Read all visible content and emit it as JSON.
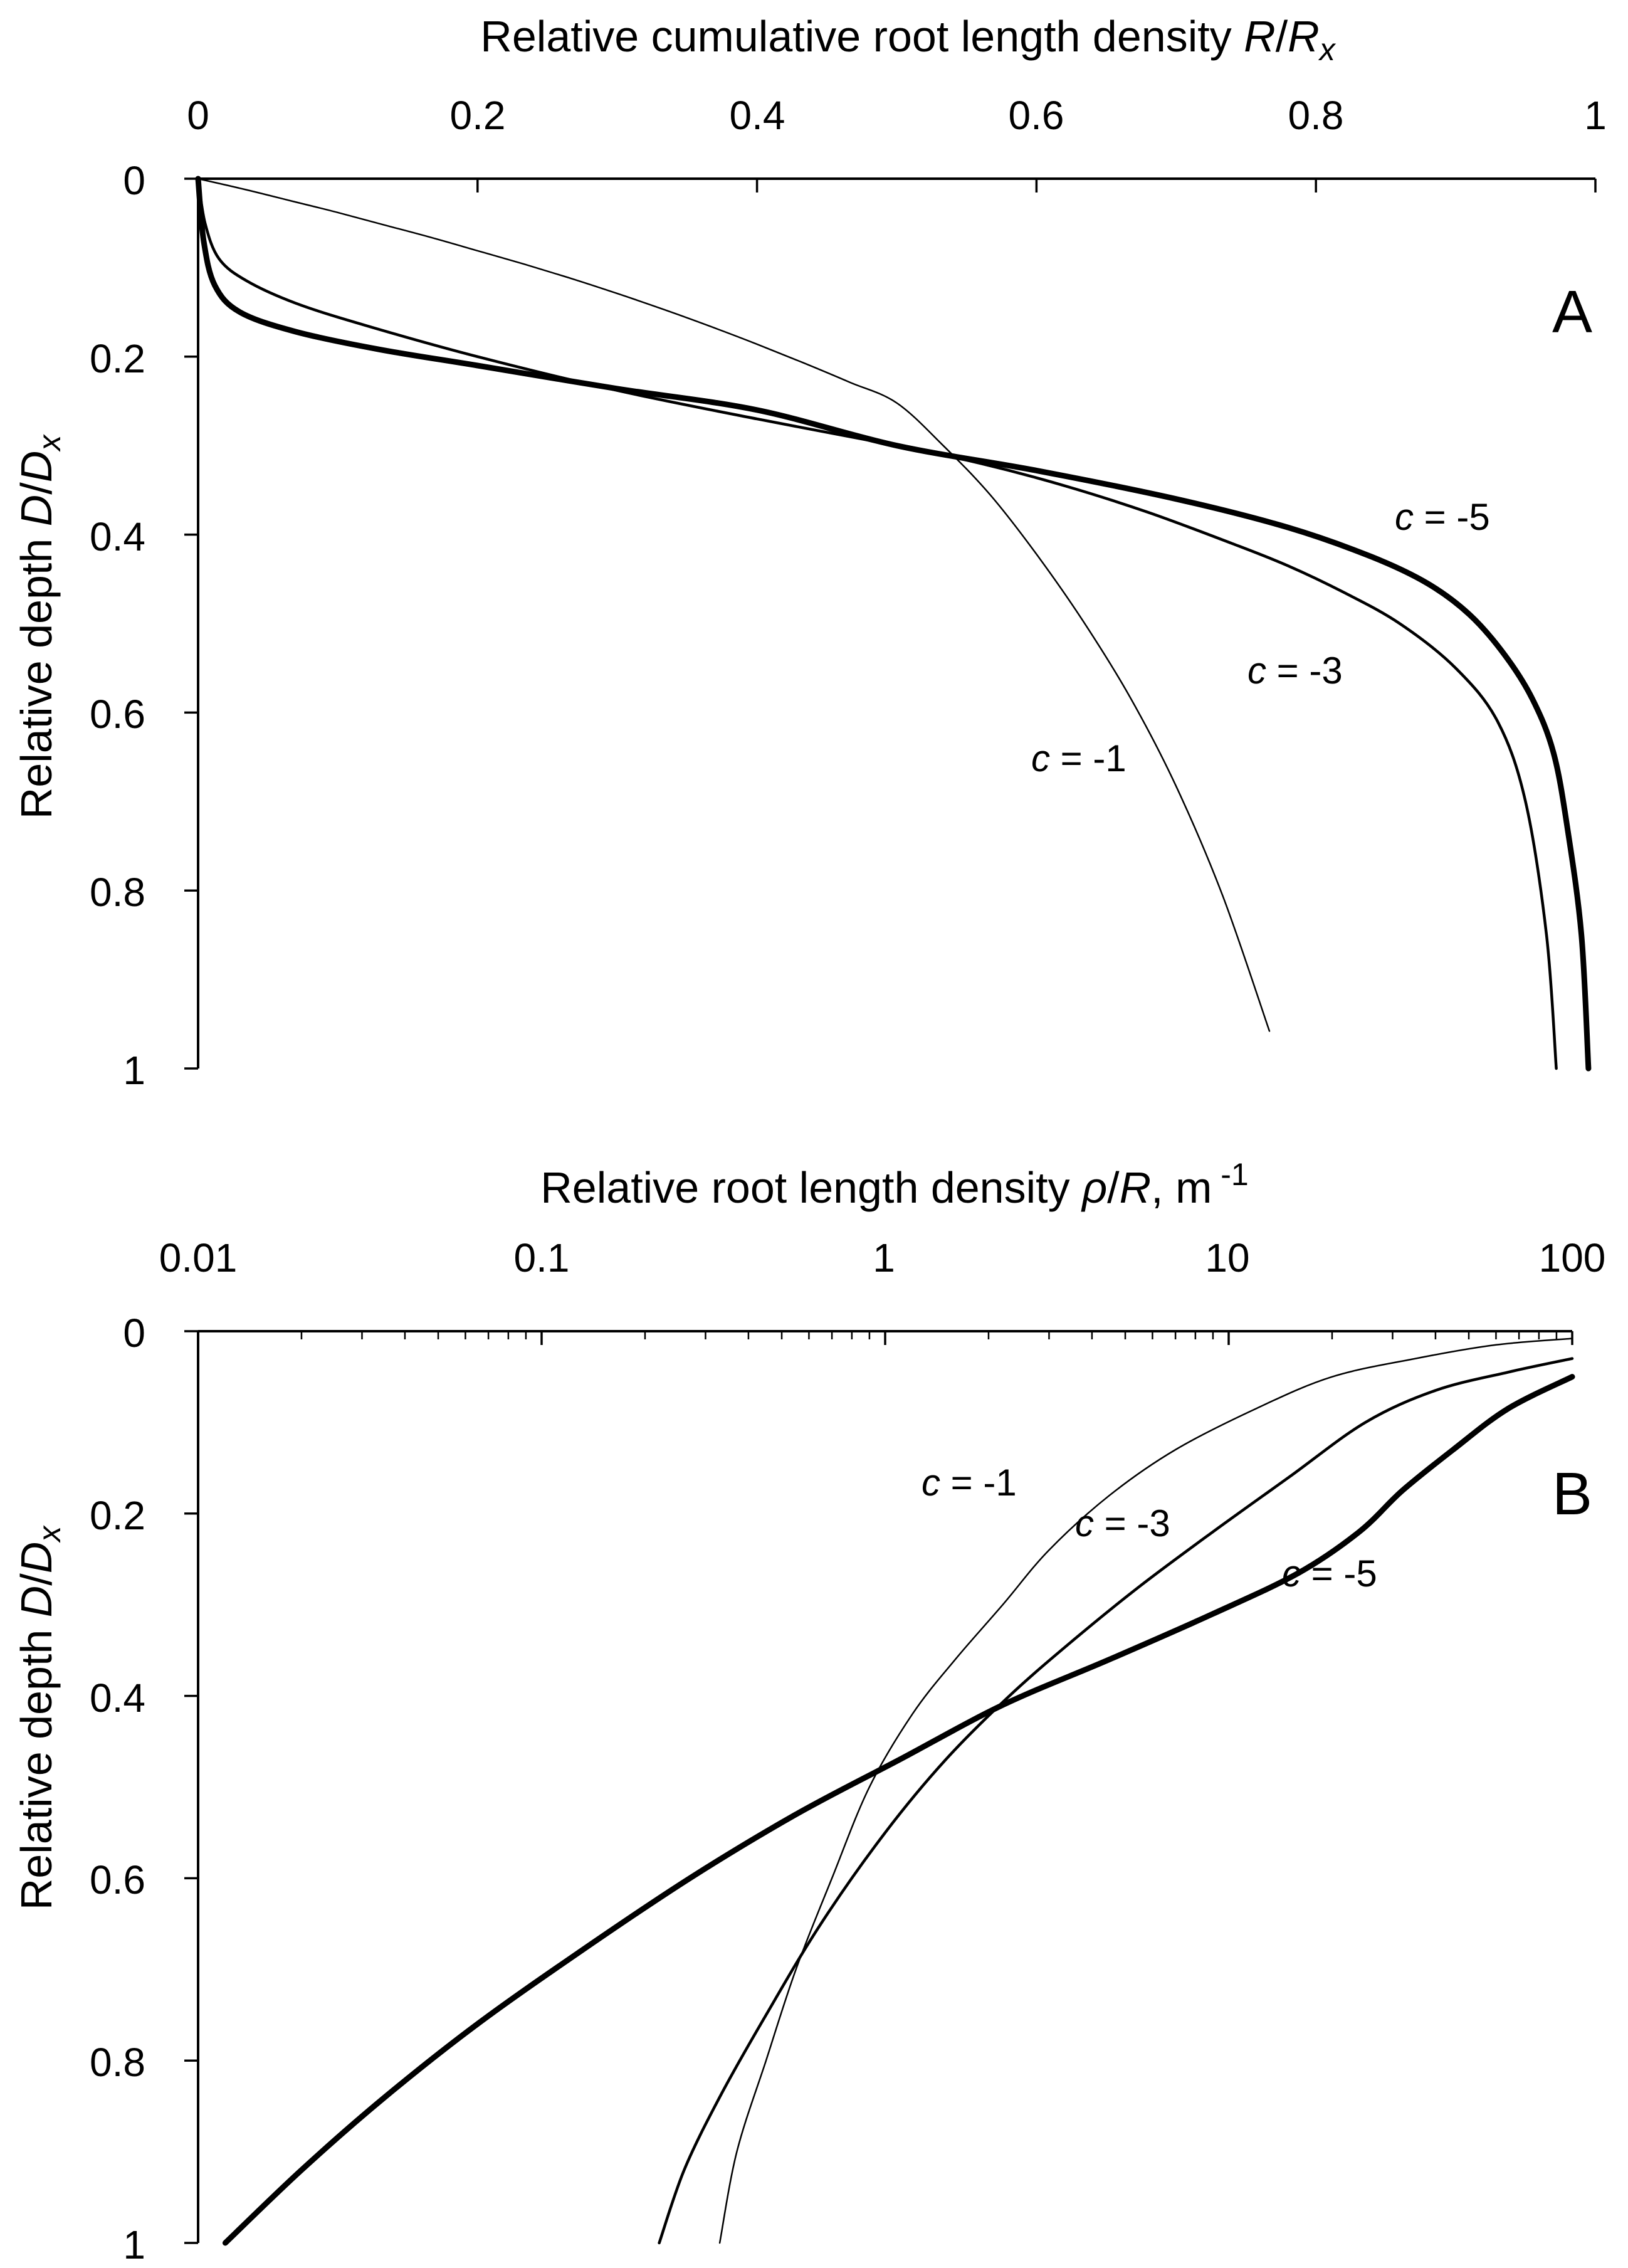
{
  "chart_data": [
    {
      "panel": "A",
      "type": "line",
      "panel_label": "A",
      "xlabel_parts": [
        "Relative cumulative root length density ",
        "R",
        "/",
        "R",
        "x"
      ],
      "ylabel_parts": [
        "Relative depth ",
        "D",
        "/",
        "D",
        "x"
      ],
      "x_scale": "linear",
      "xlim": [
        0,
        1
      ],
      "ylim": [
        0,
        1
      ],
      "y_inverted": true,
      "x_axis_position": "top",
      "x_ticks": [
        0,
        0.2,
        0.4,
        0.6,
        0.8,
        1
      ],
      "x_tick_labels": [
        "0",
        "0.2",
        "0.4",
        "0.6",
        "0.8",
        "1"
      ],
      "y_ticks": [
        0,
        0.2,
        0.4,
        0.6,
        0.8,
        1
      ],
      "y_tick_labels": [
        "0",
        "0.2",
        "0.4",
        "0.6",
        "0.8",
        "1"
      ],
      "series": [
        {
          "name": "c = -1",
          "label_italic": "c",
          "label_rest": " = -1",
          "weight": "thin",
          "x": [
            0,
            0.0333,
            0.0667,
            0.1,
            0.1333,
            0.1667,
            0.2,
            0.2333,
            0.2667,
            0.3,
            0.3333,
            0.3667,
            0.4,
            0.4333,
            0.4667,
            0.5,
            0.5333,
            0.5667,
            0.6,
            0.6333,
            0.6667,
            0.7,
            0.7333,
            0.7667
          ],
          "y": [
            0,
            0.012,
            0.025,
            0.038,
            0.052,
            0.066,
            0.081,
            0.096,
            0.112,
            0.129,
            0.147,
            0.166,
            0.186,
            0.207,
            0.229,
            0.252,
            0.3,
            0.355,
            0.422,
            0.497,
            0.582,
            0.683,
            0.806,
            0.958
          ]
        },
        {
          "name": "c = -3",
          "label_italic": "c",
          "label_rest": " = -3",
          "weight": "medium",
          "x": [
            0,
            0.005,
            0.015,
            0.035,
            0.07,
            0.12,
            0.2,
            0.3,
            0.4,
            0.5,
            0.56,
            0.62,
            0.68,
            0.74,
            0.78,
            0.82,
            0.86,
            0.9,
            0.93,
            0.95,
            0.965,
            0.972
          ],
          "y": [
            0,
            0.05,
            0.09,
            0.115,
            0.14,
            0.165,
            0.2,
            0.238,
            0.27,
            0.3,
            0.32,
            0.345,
            0.375,
            0.41,
            0.435,
            0.465,
            0.5,
            0.55,
            0.61,
            0.7,
            0.85,
            1
          ]
        },
        {
          "name": "c = -5",
          "label_italic": "c",
          "label_rest": " = -5",
          "weight": "thick",
          "x": [
            0,
            0.004,
            0.012,
            0.03,
            0.07,
            0.13,
            0.2,
            0.3,
            0.4,
            0.5,
            0.6,
            0.7,
            0.78,
            0.84,
            0.88,
            0.91,
            0.935,
            0.955,
            0.97,
            0.98,
            0.99,
            0.995
          ],
          "y": [
            0,
            0.07,
            0.12,
            0.15,
            0.172,
            0.192,
            0.21,
            0.236,
            0.26,
            0.3,
            0.328,
            0.36,
            0.392,
            0.425,
            0.455,
            0.49,
            0.535,
            0.585,
            0.645,
            0.73,
            0.85,
            1
          ]
        }
      ]
    },
    {
      "panel": "B",
      "type": "line",
      "panel_label": "B",
      "xlabel_parts": [
        "Relative  root length density ",
        "ρ",
        "/",
        "R",
        ", m",
        " -1"
      ],
      "ylabel_parts": [
        "Relative depth ",
        "D",
        "/",
        "D",
        "x"
      ],
      "x_scale": "log",
      "xlim": [
        0.01,
        100
      ],
      "ylim": [
        0,
        1
      ],
      "y_inverted": true,
      "x_axis_position": "top",
      "x_ticks": [
        0.01,
        0.1,
        1,
        10,
        100
      ],
      "x_tick_labels": [
        "0.01",
        "0.1",
        "1",
        "10",
        "100"
      ],
      "y_ticks": [
        0,
        0.2,
        0.4,
        0.6,
        0.8,
        1
      ],
      "y_tick_labels": [
        "0",
        "0.2",
        "0.4",
        "0.6",
        "0.8",
        "1"
      ],
      "series": [
        {
          "name": "c = -1",
          "label_italic": "c",
          "label_rest": " = -1",
          "weight": "thin",
          "x": [
            0.33,
            0.37,
            0.45,
            0.55,
            0.7,
            0.9,
            1.2,
            1.6,
            2.2,
            3,
            4.5,
            7,
            12,
            20,
            35,
            60,
            100
          ],
          "y": [
            1,
            0.9,
            0.8,
            0.7,
            0.6,
            0.5,
            0.42,
            0.36,
            0.3,
            0.24,
            0.18,
            0.13,
            0.085,
            0.05,
            0.03,
            0.015,
            0.008
          ]
        },
        {
          "name": "c = -3",
          "label_italic": "c",
          "label_rest": " = -3",
          "weight": "medium",
          "x": [
            0.22,
            0.26,
            0.33,
            0.45,
            0.65,
            1,
            1.5,
            2.3,
            3.5,
            5.5,
            9,
            15,
            25,
            40,
            65,
            100
          ],
          "y": [
            1,
            0.92,
            0.84,
            0.75,
            0.65,
            0.55,
            0.47,
            0.4,
            0.34,
            0.28,
            0.22,
            0.16,
            0.1,
            0.065,
            0.045,
            0.03
          ]
        },
        {
          "name": "c = -5",
          "label_italic": "c",
          "label_rest": " = -5",
          "weight": "thick",
          "x": [
            0.012,
            0.02,
            0.035,
            0.065,
            0.13,
            0.27,
            0.55,
            1.1,
            2.2,
            4.5,
            9,
            16,
            24,
            32,
            45,
            65,
            100
          ],
          "y": [
            1,
            0.92,
            0.84,
            0.76,
            0.68,
            0.6,
            0.53,
            0.47,
            0.41,
            0.36,
            0.31,
            0.265,
            0.22,
            0.175,
            0.13,
            0.085,
            0.05
          ]
        }
      ]
    }
  ]
}
